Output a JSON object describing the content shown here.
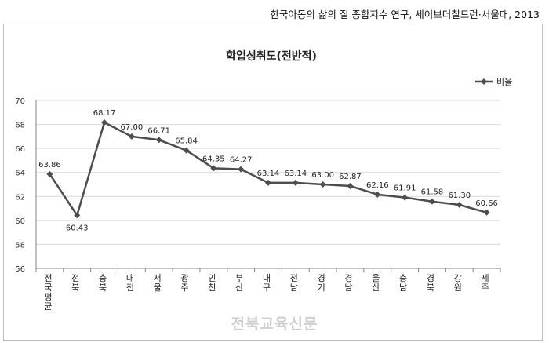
{
  "source_text": "한국아동의 삶의 질 종합지수 연구, 세이브더칠드런·서울대, 2013",
  "watermark": "전북교육신문",
  "chart_data": {
    "type": "line",
    "title": "학업성취도(전반적)",
    "categories": [
      "전국평균",
      "전북",
      "충북",
      "대전",
      "서울",
      "광주",
      "인천",
      "부산",
      "대구",
      "전남",
      "경기",
      "경남",
      "울산",
      "충남",
      "경북",
      "강원",
      "제주"
    ],
    "series": [
      {
        "name": "비율",
        "values": [
          63.86,
          60.43,
          68.17,
          67.0,
          66.71,
          65.84,
          64.35,
          64.27,
          63.14,
          63.14,
          63.0,
          62.87,
          62.16,
          61.91,
          61.58,
          61.3,
          60.66
        ],
        "labels": [
          "63.86",
          "60.43",
          "68.17",
          "67.00",
          "66.71",
          "65.84",
          "64.35",
          "64.27",
          "63.14",
          "63.14",
          "63.00",
          "62.87",
          "62.16",
          "61.91",
          "61.58",
          "61.30",
          "60.66"
        ]
      }
    ],
    "ylim": [
      56,
      70
    ],
    "yticks": [
      "56",
      "58",
      "60",
      "62",
      "64",
      "66",
      "68",
      "70"
    ],
    "grid": true,
    "legend": "top-right",
    "colors": {
      "line": "#4d4d4d",
      "grid": "#d9d9d9",
      "axis": "#868686"
    }
  }
}
